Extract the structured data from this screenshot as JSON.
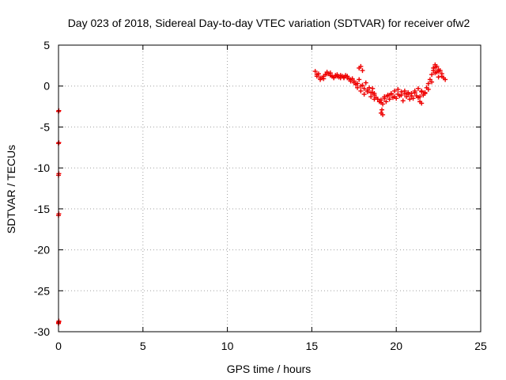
{
  "chart_data": {
    "type": "scatter",
    "title": "Day 023 of 2018, Sidereal Day-to-day VTEC variation (SDTVAR) for receiver ofw2",
    "xlabel": "GPS time / hours",
    "ylabel": "SDTVAR / TECUs",
    "xlim": [
      0,
      25
    ],
    "ylim": [
      -30,
      5
    ],
    "xticks": [
      0,
      5,
      10,
      15,
      20,
      25
    ],
    "yticks": [
      5,
      0,
      -5,
      -10,
      -15,
      -20,
      -25,
      -30
    ],
    "grid": true,
    "marker": "+",
    "marker_color": "#ee0000",
    "series": [
      {
        "name": "ofw2",
        "x": [
          0.0,
          0.02,
          0.0,
          0.02,
          0.0,
          0.02,
          0.0,
          0.02,
          0.0,
          0.02,
          0.0,
          0.02,
          15.2,
          15.3,
          15.4,
          15.5,
          15.6,
          15.7,
          15.8,
          15.9,
          16.0,
          16.1,
          16.2,
          16.3,
          16.4,
          16.5,
          16.6,
          16.7,
          16.8,
          16.9,
          17.0,
          17.1,
          17.2,
          17.3,
          17.4,
          17.5,
          17.6,
          17.7,
          17.8,
          17.9,
          18.0,
          18.1,
          18.2,
          18.3,
          18.4,
          18.5,
          18.6,
          18.7,
          18.8,
          18.9,
          19.0,
          19.1,
          19.2,
          19.3,
          19.4,
          19.5,
          19.6,
          19.7,
          19.8,
          19.9,
          20.0,
          20.1,
          20.2,
          20.3,
          20.4,
          20.5,
          20.6,
          20.7,
          20.8,
          20.9,
          21.0,
          21.1,
          21.2,
          21.3,
          21.4,
          21.5,
          21.6,
          21.7,
          21.8,
          21.9,
          22.0,
          22.1,
          22.2,
          22.3,
          22.4,
          22.5,
          22.6,
          22.7,
          22.8,
          22.9,
          15.3,
          15.5,
          15.7,
          15.9,
          16.1,
          16.3,
          16.5,
          16.7,
          16.9,
          17.1,
          17.3,
          17.5,
          17.7,
          17.9,
          18.1,
          18.3,
          18.5,
          18.7,
          18.9,
          19.1,
          19.3,
          19.5,
          19.7,
          19.9,
          20.1,
          20.3,
          20.5,
          20.7,
          20.9,
          21.1,
          21.3,
          21.5,
          21.7,
          21.9,
          22.1,
          22.3,
          22.5,
          22.7,
          17.8,
          17.9,
          18.0,
          18.6,
          18.7,
          19.1,
          19.15,
          19.2,
          21.4,
          21.5,
          22.2,
          22.3,
          22.4,
          22.5
        ],
        "y": [
          -3.1,
          -3.0,
          -7.0,
          -6.9,
          -10.9,
          -10.7,
          -15.8,
          -15.6,
          -28.9,
          -28.7,
          -29.0,
          -28.8,
          1.8,
          1.2,
          1.5,
          0.8,
          1.0,
          0.9,
          1.4,
          1.7,
          1.5,
          1.6,
          1.2,
          1.0,
          1.3,
          1.4,
          1.1,
          1.3,
          1.2,
          1.0,
          1.3,
          1.2,
          0.9,
          0.6,
          0.9,
          0.4,
          0.2,
          -0.2,
          0.8,
          -0.6,
          0.1,
          -1.0,
          0.4,
          -0.7,
          -0.2,
          -1.3,
          -0.3,
          -0.9,
          -1.4,
          -1.6,
          -1.9,
          -1.7,
          -2.2,
          -1.3,
          -1.9,
          -1.1,
          -1.6,
          -0.9,
          -1.4,
          -0.6,
          -1.5,
          -0.4,
          -1.2,
          -0.7,
          -1.8,
          -0.6,
          -1.3,
          -0.8,
          -1.6,
          -0.9,
          -1.5,
          -0.6,
          -1.2,
          -0.3,
          -1.9,
          -0.7,
          -1.1,
          -0.8,
          -0.2,
          0.3,
          0.8,
          1.4,
          1.9,
          2.3,
          1.7,
          1.1,
          1.9,
          1.5,
          1.0,
          0.8,
          1.4,
          1.0,
          1.2,
          1.5,
          1.3,
          1.1,
          1.2,
          1.0,
          1.1,
          1.0,
          0.8,
          0.6,
          0.3,
          0.0,
          -0.3,
          -0.5,
          -0.8,
          -1.1,
          -1.6,
          -2.0,
          -1.5,
          -1.2,
          -1.0,
          -1.3,
          -1.0,
          -1.1,
          -0.9,
          -1.0,
          -1.2,
          -0.8,
          -1.4,
          -0.6,
          -0.9,
          -0.4,
          0.5,
          1.6,
          1.8,
          1.2,
          2.2,
          2.4,
          1.9,
          -0.8,
          -1.6,
          -3.3,
          -2.9,
          -3.5,
          -1.3,
          -2.1,
          2.2,
          2.6,
          2.4,
          2.0
        ]
      }
    ]
  }
}
